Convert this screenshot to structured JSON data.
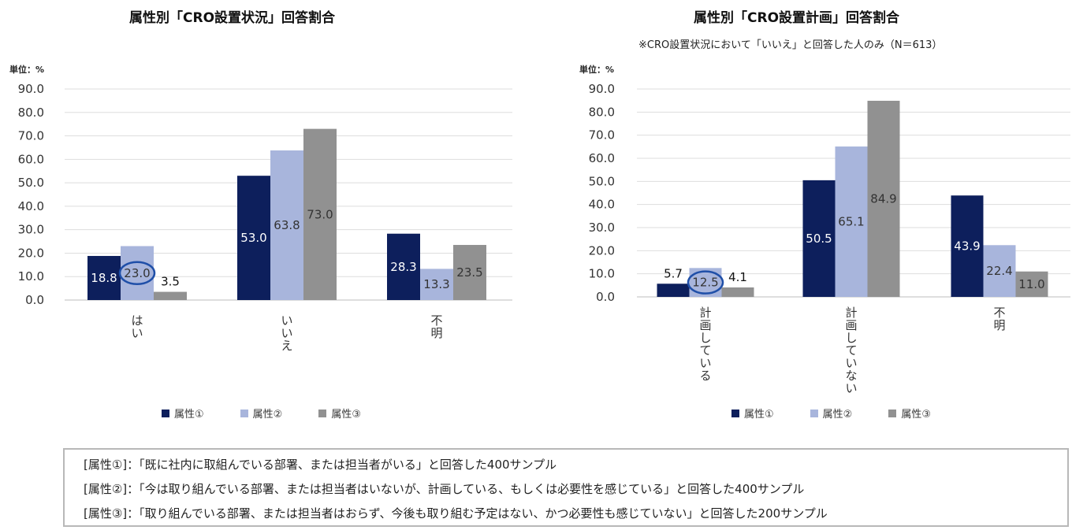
{
  "chart_data": [
    {
      "type": "bar",
      "title": "属性別「CRO設置状況」回答割合",
      "unit_label": "単位：%",
      "categories": [
        [
          "は",
          "い"
        ],
        [
          "い",
          "い",
          "え"
        ],
        [
          "不",
          "明"
        ]
      ],
      "ylim": [
        0,
        90
      ],
      "yticks": [
        "0.0",
        "10.0",
        "20.0",
        "30.0",
        "40.0",
        "50.0",
        "60.0",
        "70.0",
        "80.0",
        "90.0"
      ],
      "series": [
        {
          "name": "属性①",
          "color": "#0d1f5c",
          "values": [
            18.8,
            53.0,
            28.3
          ],
          "labels": [
            "18.8",
            "53.0",
            "28.3"
          ]
        },
        {
          "name": "属性②",
          "color": "#a8b5dc",
          "values": [
            23.0,
            63.8,
            13.3
          ],
          "labels": [
            "23.0",
            "63.8",
            "13.3"
          ]
        },
        {
          "name": "属性③",
          "color": "#919191",
          "values": [
            3.5,
            73.0,
            23.5
          ],
          "labels": [
            "3.5",
            "73.0",
            "23.5"
          ]
        }
      ],
      "highlight": {
        "series": 1,
        "category": 0
      },
      "grid": true,
      "legend": "bottom"
    },
    {
      "type": "bar",
      "title": "属性別「CRO設置計画」回答割合",
      "subtitle": "※CRO設置状況において「いいえ」と回答した人のみ（N＝613）",
      "unit_label": "単位：%",
      "categories": [
        [
          "計",
          "画",
          "し",
          "て",
          "い",
          "る"
        ],
        [
          "計",
          "画",
          "し",
          "て",
          "い",
          "な",
          "い"
        ],
        [
          "不",
          "明"
        ]
      ],
      "ylim": [
        0,
        90
      ],
      "yticks": [
        "0.0",
        "10.0",
        "20.0",
        "30.0",
        "40.0",
        "50.0",
        "60.0",
        "70.0",
        "80.0",
        "90.0"
      ],
      "series": [
        {
          "name": "属性①",
          "color": "#0d1f5c",
          "values": [
            5.7,
            50.5,
            43.9
          ],
          "labels": [
            "5.7",
            "50.5",
            "43.9"
          ]
        },
        {
          "name": "属性②",
          "color": "#a8b5dc",
          "values": [
            12.5,
            65.1,
            22.4
          ],
          "labels": [
            "12.5",
            "65.1",
            "22.4"
          ]
        },
        {
          "name": "属性③",
          "color": "#919191",
          "values": [
            4.1,
            84.9,
            11.0
          ],
          "labels": [
            "4.1",
            "84.9",
            "11.0"
          ]
        }
      ],
      "highlight": {
        "series": 1,
        "category": 0
      },
      "grid": true,
      "legend": "bottom"
    }
  ],
  "notes": [
    "[属性①]：「既に社内に取組んでいる部署、または担当者がいる」と回答した400サンプル",
    "[属性②]：「今は取り組んでいる部署、または担当者はいないが、計画している、もしくは必要性を感じている」と回答した400サンプル",
    "[属性③]：「取り組んでいる部署、または担当者はおらず、今後も取り組む予定はない、かつ必要性も感じていない」と回答した200サンプル"
  ]
}
